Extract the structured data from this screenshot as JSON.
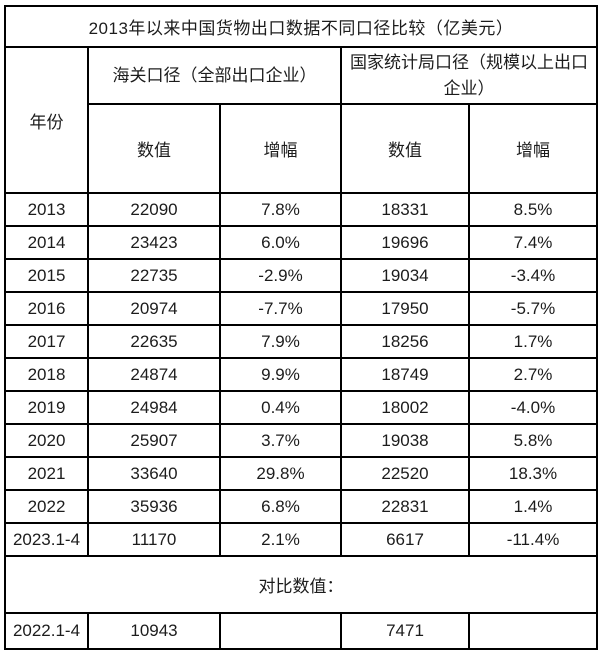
{
  "colors": {
    "negative_growth": "#c00000",
    "text": "#1c1c1c",
    "border": "#000000",
    "background": "#ffffff"
  },
  "chart_data": {
    "type": "table",
    "title": "2013年以来中国货物出口数据不同口径比较（亿美元）",
    "col_groups": [
      {
        "label": "年份",
        "span": 1
      },
      {
        "label": "海关口径（全部出口企业）",
        "span": 2
      },
      {
        "label": "国家统计局口径（规模以上出口企业）",
        "span": 2
      }
    ],
    "sub_headers": {
      "value": "数值",
      "growth": "增幅"
    },
    "rows": [
      {
        "year": "2013",
        "customs_value": "22090",
        "customs_growth": "7.8%",
        "nbs_value": "18331",
        "nbs_growth": "8.5%"
      },
      {
        "year": "2014",
        "customs_value": "23423",
        "customs_growth": "6.0%",
        "nbs_value": "19696",
        "nbs_growth": "7.4%"
      },
      {
        "year": "2015",
        "customs_value": "22735",
        "customs_growth": "-2.9%",
        "customs_growth_red": true,
        "nbs_value": "19034",
        "nbs_growth": "-3.4%",
        "nbs_growth_red": true
      },
      {
        "year": "2016",
        "customs_value": "20974",
        "customs_growth": "-7.7%",
        "customs_growth_red": true,
        "nbs_value": "17950",
        "nbs_growth": "-5.7%",
        "nbs_growth_red": true
      },
      {
        "year": "2017",
        "customs_value": "22635",
        "customs_growth": "7.9%",
        "nbs_value": "18256",
        "nbs_growth": "1.7%"
      },
      {
        "year": "2018",
        "customs_value": "24874",
        "customs_growth": "9.9%",
        "nbs_value": "18749",
        "nbs_growth": "2.7%"
      },
      {
        "year": "2019",
        "customs_value": "24984",
        "customs_growth": "0.4%",
        "nbs_value": "18002",
        "nbs_growth": "-4.0%"
      },
      {
        "year": "2020",
        "customs_value": "25907",
        "customs_growth": "3.7%",
        "nbs_value": "19038",
        "nbs_growth": "5.8%"
      },
      {
        "year": "2021",
        "customs_value": "33640",
        "customs_growth": "29.8%",
        "nbs_value": "22520",
        "nbs_growth": "18.3%"
      },
      {
        "year": "2022",
        "customs_value": "35936",
        "customs_growth": "6.8%",
        "nbs_value": "22831",
        "nbs_growth": "1.4%"
      },
      {
        "year": "2023.1-4",
        "customs_value": "11170",
        "customs_growth": "2.1%",
        "nbs_value": "6617",
        "nbs_growth": "-11.4%",
        "nbs_growth_red": true
      }
    ],
    "comparison": {
      "label": "对比数值：",
      "row": {
        "year": "2022.1-4",
        "customs_value": "10943",
        "customs_growth": "",
        "nbs_value": "7471",
        "nbs_growth": ""
      }
    }
  }
}
